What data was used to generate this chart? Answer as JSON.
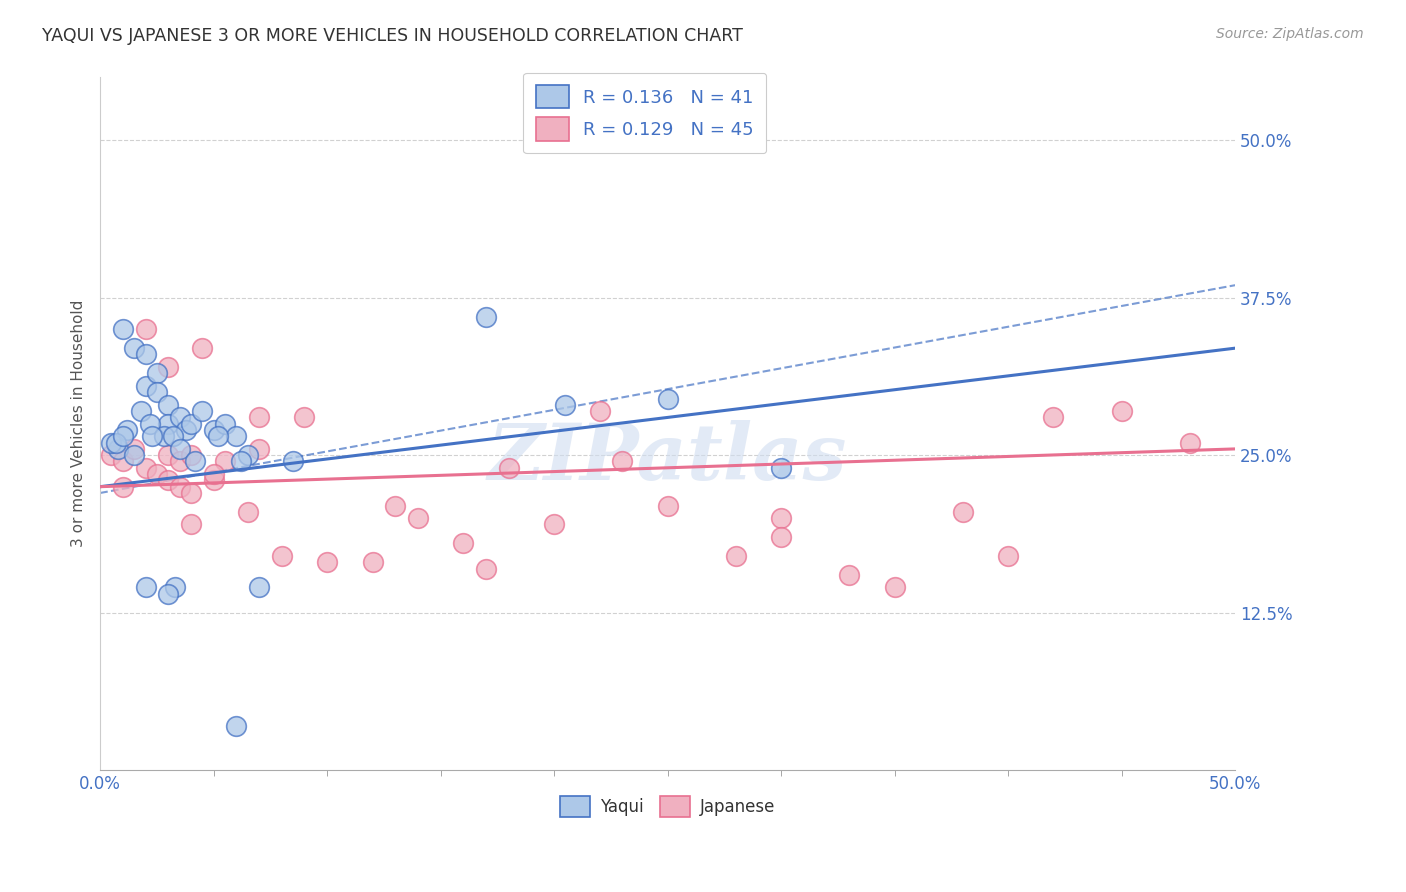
{
  "title": "YAQUI VS JAPANESE 3 OR MORE VEHICLES IN HOUSEHOLD CORRELATION CHART",
  "source": "Source: ZipAtlas.com",
  "ylabel": "3 or more Vehicles in Household",
  "xlim": [
    0,
    50
  ],
  "ylim": [
    0,
    55
  ],
  "xtick_major": [
    0,
    50
  ],
  "xtick_minor": [
    5,
    10,
    15,
    20,
    25,
    30,
    35,
    40,
    45
  ],
  "ytick_major": [
    12.5,
    25,
    37.5,
    50
  ],
  "yaqui_R": 0.136,
  "yaqui_N": 41,
  "japanese_R": 0.129,
  "japanese_N": 45,
  "yaqui_color": "#adc8e8",
  "japanese_color": "#f0b0c0",
  "yaqui_line_color": "#4472c4",
  "japanese_line_color": "#e87090",
  "tick_label_color": "#4472c4",
  "watermark_text": "ZIPatlas",
  "yaqui_x": [
    1.0,
    1.5,
    2.0,
    2.0,
    2.5,
    2.5,
    3.0,
    3.0,
    3.5,
    3.8,
    4.0,
    4.5,
    5.0,
    5.5,
    6.0,
    6.5,
    1.2,
    1.8,
    2.2,
    2.8,
    3.2,
    3.5,
    4.2,
    5.2,
    6.2,
    7.0,
    8.5,
    0.8,
    1.5,
    2.3,
    3.3,
    17.0,
    20.5,
    25.0,
    30.0,
    0.5,
    0.7,
    1.0,
    2.0,
    3.0,
    6.0
  ],
  "yaqui_y": [
    35.0,
    33.5,
    30.5,
    33.0,
    31.5,
    30.0,
    29.0,
    27.5,
    28.0,
    27.0,
    27.5,
    28.5,
    27.0,
    27.5,
    26.5,
    25.0,
    27.0,
    28.5,
    27.5,
    26.5,
    26.5,
    25.5,
    24.5,
    26.5,
    24.5,
    14.5,
    24.5,
    25.5,
    25.0,
    26.5,
    14.5,
    36.0,
    29.0,
    29.5,
    24.0,
    26.0,
    26.0,
    26.5,
    14.5,
    14.0,
    3.5
  ],
  "japanese_x": [
    0.5,
    1.0,
    1.5,
    2.0,
    2.5,
    3.0,
    3.0,
    3.5,
    3.5,
    4.0,
    4.0,
    4.5,
    5.0,
    5.5,
    6.5,
    7.0,
    8.0,
    10.0,
    12.0,
    14.0,
    16.0,
    18.0,
    20.0,
    22.0,
    25.0,
    28.0,
    30.0,
    33.0,
    35.0,
    40.0,
    45.0,
    1.0,
    2.0,
    3.0,
    4.0,
    5.0,
    7.0,
    9.0,
    13.0,
    17.0,
    23.0,
    30.0,
    38.0,
    42.0,
    48.0
  ],
  "japanese_y": [
    25.0,
    24.5,
    25.5,
    24.0,
    23.5,
    23.0,
    25.0,
    22.5,
    24.5,
    22.0,
    25.0,
    33.5,
    23.0,
    24.5,
    20.5,
    25.5,
    17.0,
    16.5,
    16.5,
    20.0,
    18.0,
    24.0,
    19.5,
    28.5,
    21.0,
    17.0,
    20.0,
    15.5,
    14.5,
    17.0,
    28.5,
    22.5,
    35.0,
    32.0,
    19.5,
    23.5,
    28.0,
    28.0,
    21.0,
    16.0,
    24.5,
    18.5,
    20.5,
    28.0,
    26.0
  ],
  "yaqui_trend": [
    22.5,
    33.5
  ],
  "japanese_trend": [
    22.5,
    25.5
  ],
  "dashed_line": [
    22.0,
    38.5
  ]
}
